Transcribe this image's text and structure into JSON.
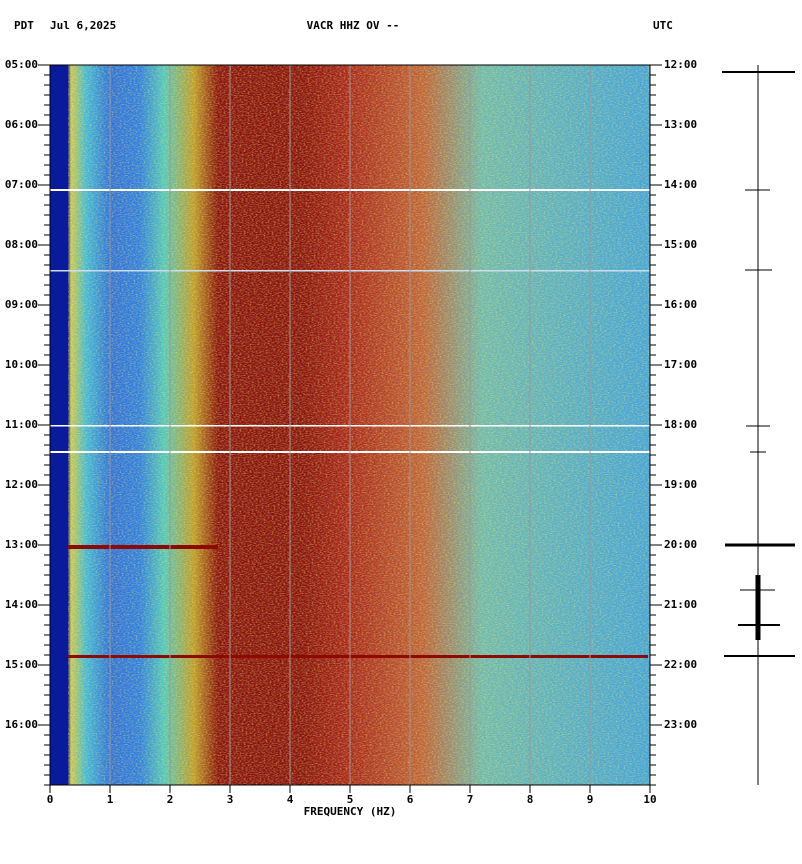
{
  "chart_data": {
    "type": "spectrogram",
    "title": "VACR HHZ OV --",
    "left_title": "PDT",
    "date": "Jul 6,2025",
    "right_title": "UTC",
    "x_label": "FREQUENCY (HZ)",
    "xlim": [
      0,
      10
    ],
    "xticks": [
      0,
      1,
      2,
      3,
      4,
      5,
      6,
      7,
      8,
      9,
      10
    ],
    "ylim": [
      5,
      17
    ],
    "yticks": [
      {
        "value": 5,
        "label": "05:00"
      },
      {
        "value": 6,
        "label": "06:00"
      },
      {
        "value": 7,
        "label": "07:00"
      },
      {
        "value": 8,
        "label": "08:00"
      },
      {
        "value": 9,
        "label": "09:00"
      },
      {
        "value": 10,
        "label": "10:00"
      },
      {
        "value": 11,
        "label": "11:00"
      },
      {
        "value": 12,
        "label": "12:00"
      },
      {
        "value": 13,
        "label": "13:00"
      },
      {
        "value": 14,
        "label": "14:00"
      },
      {
        "value": 15,
        "label": "15:00"
      },
      {
        "value": 16,
        "label": "16:00"
      }
    ],
    "y2lim": [
      12,
      24
    ],
    "y2ticks": [
      {
        "value": 12,
        "label": "12:00"
      },
      {
        "value": 13,
        "label": "13:00"
      },
      {
        "value": 14,
        "label": "14:00"
      },
      {
        "value": 15,
        "label": "15:00"
      },
      {
        "value": 16,
        "label": "16:00"
      },
      {
        "value": 17,
        "label": "17:00"
      },
      {
        "value": 18,
        "label": "18:00"
      },
      {
        "value": 19,
        "label": "19:00"
      },
      {
        "value": 20,
        "label": "20:00"
      },
      {
        "value": 21,
        "label": "21:00"
      },
      {
        "value": 22,
        "label": "22:00"
      },
      {
        "value": 23,
        "label": "23:00"
      }
    ],
    "grid": true
  }
}
